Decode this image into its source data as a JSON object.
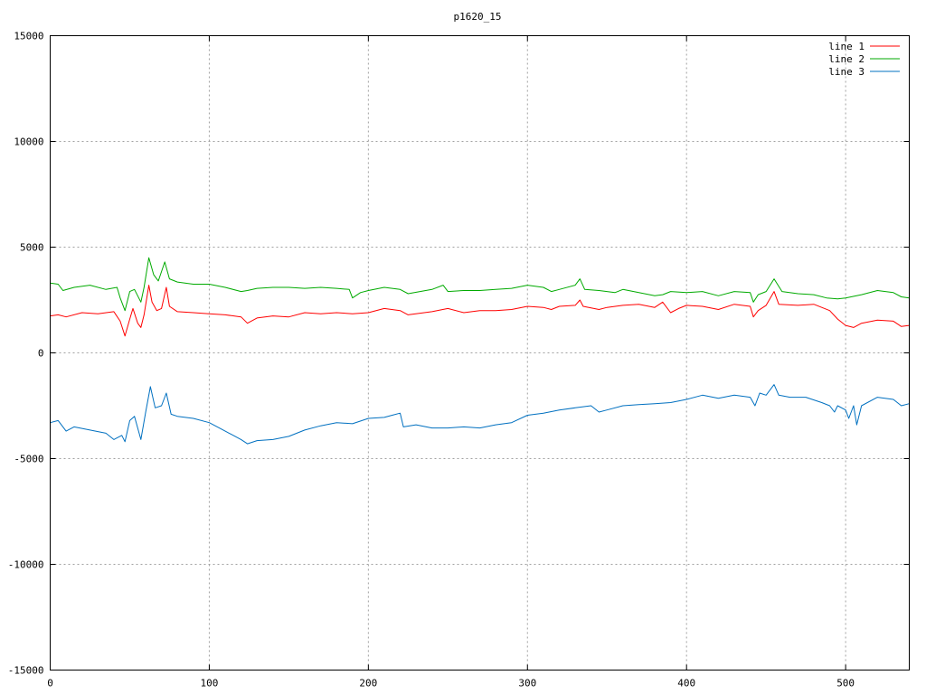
{
  "chart_data": {
    "type": "line",
    "title": "p1620_15",
    "xlabel": "",
    "ylabel": "",
    "xlim": [
      0,
      540
    ],
    "ylim": [
      -15000,
      15000
    ],
    "x_ticks": [
      0,
      100,
      200,
      300,
      400,
      500
    ],
    "y_ticks": [
      15000,
      10000,
      5000,
      0,
      -5000,
      -10000,
      -15000
    ],
    "grid": true,
    "legend_position": "top-right",
    "series": [
      {
        "name": "line 1",
        "color": "#ff0000",
        "points": [
          [
            0,
            1750
          ],
          [
            5,
            1800
          ],
          [
            10,
            1700
          ],
          [
            20,
            1900
          ],
          [
            30,
            1850
          ],
          [
            40,
            1950
          ],
          [
            44,
            1500
          ],
          [
            47,
            800
          ],
          [
            50,
            1600
          ],
          [
            52,
            2100
          ],
          [
            55,
            1400
          ],
          [
            57,
            1200
          ],
          [
            59,
            1800
          ],
          [
            62,
            3200
          ],
          [
            64,
            2400
          ],
          [
            67,
            2000
          ],
          [
            70,
            2100
          ],
          [
            73,
            3100
          ],
          [
            75,
            2200
          ],
          [
            80,
            1950
          ],
          [
            90,
            1900
          ],
          [
            100,
            1850
          ],
          [
            110,
            1800
          ],
          [
            120,
            1700
          ],
          [
            124,
            1400
          ],
          [
            130,
            1650
          ],
          [
            140,
            1750
          ],
          [
            150,
            1700
          ],
          [
            160,
            1900
          ],
          [
            170,
            1850
          ],
          [
            180,
            1900
          ],
          [
            190,
            1850
          ],
          [
            200,
            1900
          ],
          [
            210,
            2100
          ],
          [
            220,
            2000
          ],
          [
            225,
            1800
          ],
          [
            240,
            1950
          ],
          [
            250,
            2100
          ],
          [
            260,
            1900
          ],
          [
            270,
            2000
          ],
          [
            280,
            2000
          ],
          [
            290,
            2050
          ],
          [
            300,
            2200
          ],
          [
            310,
            2150
          ],
          [
            315,
            2050
          ],
          [
            320,
            2200
          ],
          [
            330,
            2250
          ],
          [
            333,
            2500
          ],
          [
            335,
            2200
          ],
          [
            345,
            2050
          ],
          [
            350,
            2150
          ],
          [
            360,
            2250
          ],
          [
            370,
            2300
          ],
          [
            380,
            2150
          ],
          [
            385,
            2400
          ],
          [
            390,
            1900
          ],
          [
            395,
            2100
          ],
          [
            400,
            2250
          ],
          [
            410,
            2200
          ],
          [
            420,
            2050
          ],
          [
            430,
            2300
          ],
          [
            440,
            2200
          ],
          [
            442,
            1700
          ],
          [
            445,
            2000
          ],
          [
            450,
            2250
          ],
          [
            455,
            2900
          ],
          [
            458,
            2300
          ],
          [
            470,
            2250
          ],
          [
            480,
            2300
          ],
          [
            490,
            2000
          ],
          [
            495,
            1600
          ],
          [
            500,
            1300
          ],
          [
            505,
            1200
          ],
          [
            510,
            1400
          ],
          [
            520,
            1550
          ],
          [
            530,
            1500
          ],
          [
            535,
            1250
          ],
          [
            540,
            1300
          ]
        ]
      },
      {
        "name": "line 2",
        "color": "#00aa00",
        "points": [
          [
            0,
            3300
          ],
          [
            5,
            3250
          ],
          [
            8,
            2950
          ],
          [
            15,
            3100
          ],
          [
            25,
            3200
          ],
          [
            35,
            3000
          ],
          [
            42,
            3100
          ],
          [
            44,
            2600
          ],
          [
            47,
            2000
          ],
          [
            50,
            2900
          ],
          [
            53,
            3000
          ],
          [
            57,
            2400
          ],
          [
            59,
            3100
          ],
          [
            62,
            4500
          ],
          [
            65,
            3700
          ],
          [
            68,
            3400
          ],
          [
            72,
            4300
          ],
          [
            75,
            3500
          ],
          [
            80,
            3350
          ],
          [
            90,
            3250
          ],
          [
            100,
            3250
          ],
          [
            110,
            3100
          ],
          [
            120,
            2900
          ],
          [
            124,
            2950
          ],
          [
            130,
            3050
          ],
          [
            140,
            3100
          ],
          [
            150,
            3100
          ],
          [
            160,
            3050
          ],
          [
            170,
            3100
          ],
          [
            180,
            3050
          ],
          [
            188,
            3000
          ],
          [
            190,
            2600
          ],
          [
            195,
            2850
          ],
          [
            200,
            2950
          ],
          [
            210,
            3100
          ],
          [
            220,
            3000
          ],
          [
            225,
            2800
          ],
          [
            240,
            3000
          ],
          [
            247,
            3200
          ],
          [
            250,
            2900
          ],
          [
            260,
            2950
          ],
          [
            270,
            2950
          ],
          [
            280,
            3000
          ],
          [
            290,
            3050
          ],
          [
            300,
            3200
          ],
          [
            310,
            3100
          ],
          [
            315,
            2900
          ],
          [
            320,
            3000
          ],
          [
            330,
            3200
          ],
          [
            333,
            3500
          ],
          [
            336,
            3000
          ],
          [
            345,
            2950
          ],
          [
            355,
            2850
          ],
          [
            360,
            3000
          ],
          [
            370,
            2850
          ],
          [
            380,
            2700
          ],
          [
            385,
            2750
          ],
          [
            390,
            2900
          ],
          [
            400,
            2850
          ],
          [
            410,
            2900
          ],
          [
            420,
            2700
          ],
          [
            430,
            2900
          ],
          [
            440,
            2850
          ],
          [
            442,
            2400
          ],
          [
            445,
            2750
          ],
          [
            450,
            2900
          ],
          [
            455,
            3500
          ],
          [
            460,
            2900
          ],
          [
            470,
            2800
          ],
          [
            480,
            2750
          ],
          [
            488,
            2600
          ],
          [
            495,
            2550
          ],
          [
            500,
            2600
          ],
          [
            510,
            2750
          ],
          [
            520,
            2950
          ],
          [
            530,
            2850
          ],
          [
            535,
            2650
          ],
          [
            540,
            2600
          ]
        ]
      },
      {
        "name": "line 3",
        "color": "#0070c0",
        "points": [
          [
            0,
            -3300
          ],
          [
            5,
            -3200
          ],
          [
            10,
            -3700
          ],
          [
            15,
            -3500
          ],
          [
            25,
            -3650
          ],
          [
            35,
            -3800
          ],
          [
            40,
            -4100
          ],
          [
            45,
            -3900
          ],
          [
            47,
            -4200
          ],
          [
            50,
            -3200
          ],
          [
            53,
            -3000
          ],
          [
            57,
            -4100
          ],
          [
            60,
            -2800
          ],
          [
            63,
            -1600
          ],
          [
            66,
            -2600
          ],
          [
            70,
            -2500
          ],
          [
            73,
            -1900
          ],
          [
            76,
            -2900
          ],
          [
            80,
            -3000
          ],
          [
            90,
            -3100
          ],
          [
            100,
            -3300
          ],
          [
            110,
            -3700
          ],
          [
            120,
            -4100
          ],
          [
            124,
            -4300
          ],
          [
            130,
            -4150
          ],
          [
            140,
            -4100
          ],
          [
            150,
            -3950
          ],
          [
            160,
            -3650
          ],
          [
            170,
            -3450
          ],
          [
            180,
            -3300
          ],
          [
            190,
            -3350
          ],
          [
            200,
            -3100
          ],
          [
            210,
            -3050
          ],
          [
            215,
            -2950
          ],
          [
            220,
            -2850
          ],
          [
            222,
            -3500
          ],
          [
            230,
            -3400
          ],
          [
            240,
            -3550
          ],
          [
            250,
            -3550
          ],
          [
            260,
            -3500
          ],
          [
            270,
            -3550
          ],
          [
            280,
            -3400
          ],
          [
            290,
            -3300
          ],
          [
            300,
            -2950
          ],
          [
            310,
            -2850
          ],
          [
            320,
            -2700
          ],
          [
            330,
            -2600
          ],
          [
            340,
            -2500
          ],
          [
            345,
            -2800
          ],
          [
            350,
            -2700
          ],
          [
            360,
            -2500
          ],
          [
            370,
            -2450
          ],
          [
            380,
            -2400
          ],
          [
            390,
            -2350
          ],
          [
            400,
            -2200
          ],
          [
            410,
            -2000
          ],
          [
            420,
            -2150
          ],
          [
            430,
            -2000
          ],
          [
            440,
            -2100
          ],
          [
            443,
            -2500
          ],
          [
            446,
            -1900
          ],
          [
            450,
            -2000
          ],
          [
            455,
            -1500
          ],
          [
            458,
            -2000
          ],
          [
            465,
            -2100
          ],
          [
            475,
            -2100
          ],
          [
            485,
            -2350
          ],
          [
            490,
            -2500
          ],
          [
            493,
            -2800
          ],
          [
            495,
            -2500
          ],
          [
            500,
            -2700
          ],
          [
            502,
            -3100
          ],
          [
            505,
            -2500
          ],
          [
            507,
            -3400
          ],
          [
            510,
            -2500
          ],
          [
            520,
            -2100
          ],
          [
            530,
            -2200
          ],
          [
            535,
            -2500
          ],
          [
            540,
            -2400
          ]
        ]
      }
    ]
  }
}
